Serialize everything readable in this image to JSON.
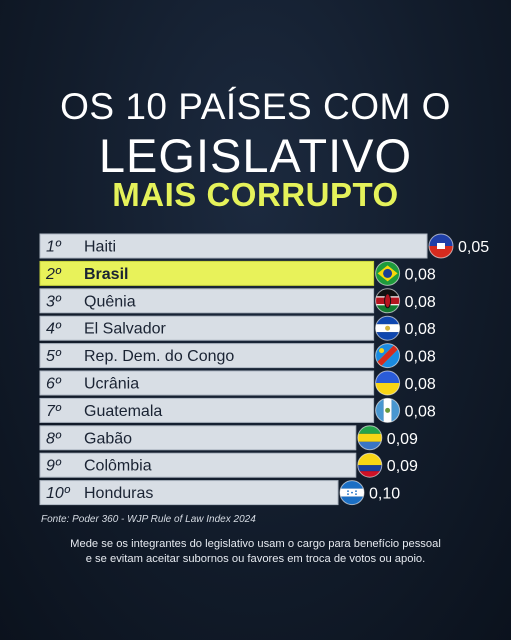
{
  "header": {
    "line1": "OS 10 PAÍSES COM O",
    "line2": "LEGISLATIVO",
    "line3": "MAIS CORRUPTO"
  },
  "chart_data": {
    "type": "bar",
    "orientation": "horizontal",
    "categories": [
      "Haiti",
      "Brasil",
      "Quênia",
      "El Salvador",
      "Rep. Dem. do Congo",
      "Ucrânia",
      "Guatemala",
      "Gabão",
      "Colômbia",
      "Honduras"
    ],
    "ranks": [
      "1º",
      "2º",
      "3º",
      "4º",
      "5º",
      "6º",
      "7º",
      "8º",
      "9º",
      "10º"
    ],
    "values": [
      0.05,
      0.08,
      0.08,
      0.08,
      0.08,
      0.08,
      0.08,
      0.09,
      0.09,
      0.1
    ],
    "value_labels": [
      "0,05",
      "0,08",
      "0,08",
      "0,08",
      "0,08",
      "0,08",
      "0,08",
      "0,09",
      "0,09",
      "0,10"
    ],
    "highlight": "Brasil",
    "colors": {
      "bar": "#d8dee5",
      "highlight_bar": "#e8f25a",
      "value_text": "#ffffff",
      "label_text": "#1a2333"
    },
    "flags": [
      "haiti-flag-icon",
      "brazil-flag-icon",
      "kenya-flag-icon",
      "el-salvador-flag-icon",
      "drc-flag-icon",
      "ukraine-flag-icon",
      "guatemala-flag-icon",
      "gabon-flag-icon",
      "colombia-flag-icon",
      "honduras-flag-icon"
    ]
  },
  "footer": {
    "source": "Fonte: Poder 360 - WJP Rule of Law Index 2024",
    "note_line1": "Mede se os integrantes do legislativo usam o cargo para benefício pessoal",
    "note_line2": "e se evitam aceitar subornos ou favores em troca de votos ou apoio."
  }
}
